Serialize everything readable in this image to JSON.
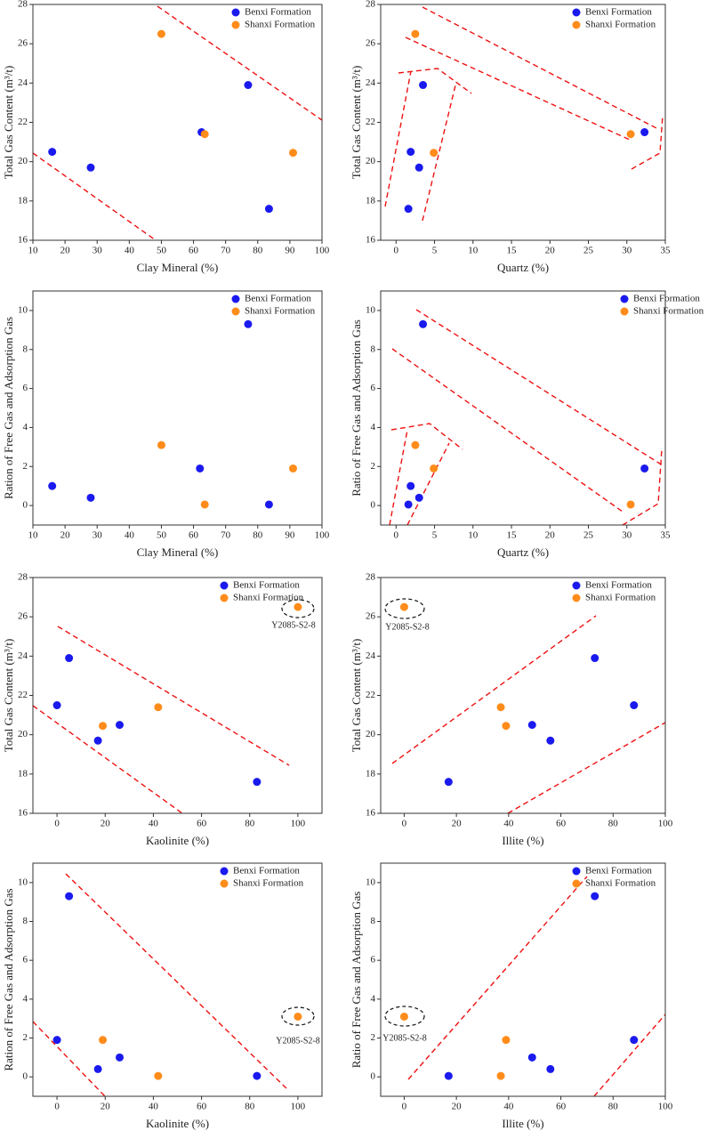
{
  "chart_data": [
    {
      "type": "scatter",
      "xlabel": "Clay Mineral (%)",
      "ylabel": "Total Gas Content (m³/t)",
      "xlim": [
        10,
        100
      ],
      "xticks": [
        10,
        20,
        30,
        40,
        50,
        60,
        70,
        80,
        90,
        100
      ],
      "ylim": [
        16,
        28
      ],
      "yticks": [
        16,
        18,
        20,
        22,
        24,
        26,
        28
      ],
      "legend": "upper right",
      "series": [
        {
          "name": "Benxi Formation",
          "color": "#1a1aee",
          "x": [
            16,
            28,
            62.5,
            77,
            83.5
          ],
          "values": [
            20.5,
            19.7,
            21.5,
            23.9,
            17.6
          ]
        },
        {
          "name": "Shanxi Formation",
          "color": "#ff8c1a",
          "x": [
            50,
            63.5,
            91
          ],
          "values": [
            26.5,
            21.4,
            20.45
          ]
        }
      ]
    },
    {
      "type": "scatter",
      "xlabel": "Quartz (%)",
      "ylabel": "Total Gas Content (m³/t)",
      "xlim": [
        -2,
        35
      ],
      "xticks": [
        0,
        5,
        10,
        15,
        20,
        25,
        30,
        35
      ],
      "ylim": [
        16,
        28
      ],
      "yticks": [
        16,
        18,
        20,
        22,
        24,
        26,
        28
      ],
      "legend": "upper right",
      "series": [
        {
          "name": "Benxi Formation",
          "color": "#1a1aee",
          "x": [
            1.6,
            1.9,
            3,
            3.5,
            32.3
          ],
          "values": [
            17.6,
            20.5,
            19.7,
            23.9,
            21.5
          ]
        },
        {
          "name": "Shanxi Formation",
          "color": "#ff8c1a",
          "x": [
            2.5,
            4.9,
            30.5
          ],
          "values": [
            26.5,
            20.45,
            21.4
          ]
        }
      ]
    },
    {
      "type": "scatter",
      "xlabel": "Clay Mineral (%)",
      "ylabel": "Ration of Free Gas and Adsorption Gas",
      "xlim": [
        10,
        100
      ],
      "xticks": [
        10,
        20,
        30,
        40,
        50,
        60,
        70,
        80,
        90,
        100
      ],
      "ylim": [
        -1,
        11
      ],
      "yticks": [
        0,
        2,
        4,
        6,
        8,
        10
      ],
      "legend": "upper right",
      "series": [
        {
          "name": "Benxi Formation",
          "color": "#1a1aee",
          "x": [
            16,
            28,
            62,
            77,
            83.5
          ],
          "values": [
            1.0,
            0.4,
            1.9,
            9.3,
            0.05
          ]
        },
        {
          "name": "Shanxi Formation",
          "color": "#ff8c1a",
          "x": [
            50,
            63.5,
            91
          ],
          "values": [
            3.1,
            0.05,
            1.9
          ]
        }
      ]
    },
    {
      "type": "scatter",
      "xlabel": "Quartz (%)",
      "ylabel": "Ratio of Free Gas and Adsorption Gas",
      "xlim": [
        -2,
        35
      ],
      "xticks": [
        0,
        5,
        10,
        15,
        20,
        25,
        30,
        35
      ],
      "ylim": [
        -1,
        11
      ],
      "yticks": [
        0,
        2,
        4,
        6,
        8,
        10
      ],
      "legend": "upper right",
      "series": [
        {
          "name": "Benxi Formation",
          "color": "#1a1aee",
          "x": [
            1.6,
            1.9,
            3,
            3.5,
            32.3
          ],
          "values": [
            0.05,
            1.0,
            0.4,
            9.3,
            1.9
          ]
        },
        {
          "name": "Shanxi Formation",
          "color": "#ff8c1a",
          "x": [
            2.5,
            4.9,
            30.5
          ],
          "values": [
            3.1,
            1.9,
            0.05
          ]
        }
      ]
    },
    {
      "type": "scatter",
      "xlabel": "Kaolinite (%)",
      "ylabel": "Total Gas Content (m³/t)",
      "xlim": [
        -10,
        110
      ],
      "xticks": [
        0,
        20,
        40,
        60,
        80,
        100
      ],
      "ylim": [
        16,
        28
      ],
      "yticks": [
        16,
        18,
        20,
        22,
        24,
        26,
        28
      ],
      "legend": "upper right",
      "annotation": "Y2085-S2-8",
      "series": [
        {
          "name": "Benxi Formation",
          "color": "#1a1aee",
          "x": [
            0,
            5,
            17,
            26,
            83
          ],
          "values": [
            21.5,
            23.9,
            19.7,
            20.5,
            17.6
          ]
        },
        {
          "name": "Shanxi Formation",
          "color": "#ff8c1a",
          "x": [
            19,
            42,
            100
          ],
          "values": [
            20.45,
            21.4,
            26.5
          ]
        }
      ]
    },
    {
      "type": "scatter",
      "xlabel": "Illite (%)",
      "ylabel": "Total Gas Content (m³/t)",
      "xlim": [
        -9,
        100
      ],
      "xticks": [
        0,
        20,
        40,
        60,
        80,
        100
      ],
      "ylim": [
        16,
        28
      ],
      "yticks": [
        16,
        18,
        20,
        22,
        24,
        26,
        28
      ],
      "legend": "upper right",
      "annotation": "Y2085-S2-8",
      "series": [
        {
          "name": "Benxi Formation",
          "color": "#1a1aee",
          "x": [
            17,
            49,
            56,
            73,
            88
          ],
          "values": [
            17.6,
            20.5,
            19.7,
            23.9,
            21.5
          ]
        },
        {
          "name": "Shanxi Formation",
          "color": "#ff8c1a",
          "x": [
            0,
            37,
            39
          ],
          "values": [
            26.5,
            21.4,
            20.45
          ]
        }
      ]
    },
    {
      "type": "scatter",
      "xlabel": "Kaolinite (%)",
      "ylabel": "Ration of Free Gas and Adsorption Gas",
      "xlim": [
        -10,
        110
      ],
      "xticks": [
        0,
        20,
        40,
        60,
        80,
        100
      ],
      "ylim": [
        -1,
        11
      ],
      "yticks": [
        0,
        2,
        4,
        6,
        8,
        10
      ],
      "legend": "upper right",
      "annotation": "Y2085-S2-8",
      "series": [
        {
          "name": "Benxi Formation",
          "color": "#1a1aee",
          "x": [
            0,
            5,
            17,
            26,
            83
          ],
          "values": [
            1.9,
            9.3,
            0.4,
            1.0,
            0.05
          ]
        },
        {
          "name": "Shanxi Formation",
          "color": "#ff8c1a",
          "x": [
            19,
            42,
            100
          ],
          "values": [
            1.9,
            0.05,
            3.1
          ]
        }
      ]
    },
    {
      "type": "scatter",
      "xlabel": "Illite (%)",
      "ylabel": "Ratio of Free Gas and Adsorption Gas",
      "xlim": [
        -9,
        100
      ],
      "xticks": [
        0,
        20,
        40,
        60,
        80,
        100
      ],
      "ylim": [
        -1,
        11
      ],
      "yticks": [
        0,
        2,
        4,
        6,
        8,
        10
      ],
      "legend": "upper right",
      "annotation": "Y2085-S2-8",
      "series": [
        {
          "name": "Benxi Formation",
          "color": "#1a1aee",
          "x": [
            17,
            49,
            56,
            73,
            88
          ],
          "values": [
            0.05,
            1.0,
            0.4,
            9.3,
            1.9
          ]
        },
        {
          "name": "Shanxi Formation",
          "color": "#ff8c1a",
          "x": [
            0,
            37,
            39
          ],
          "values": [
            3.1,
            0.05,
            1.9
          ]
        }
      ]
    }
  ]
}
